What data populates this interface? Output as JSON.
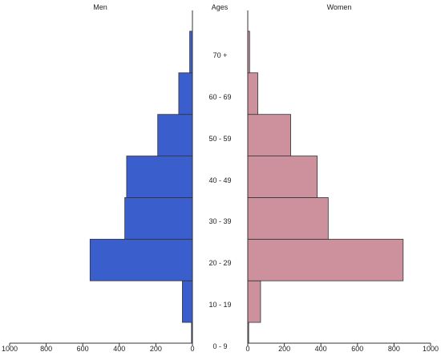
{
  "chart_data": {
    "type": "bar",
    "orientation": "horizontal-population-pyramid",
    "panel_titles": {
      "left": "Men",
      "center": "Ages",
      "right": "Women"
    },
    "categories": [
      "0 - 9",
      "10 - 19",
      "20 - 29",
      "30 - 39",
      "40 - 49",
      "50 - 59",
      "60 - 69",
      "70 +"
    ],
    "series": [
      {
        "name": "Men",
        "color": "#3a5fcd",
        "boundaries": [
          0,
          5,
          15,
          25,
          35,
          45,
          55,
          65,
          75,
          80
        ],
        "values": [
          5,
          55,
          560,
          370,
          360,
          190,
          75,
          15
        ]
      },
      {
        "name": "Women",
        "color": "#cd919e",
        "boundaries": [
          0,
          5,
          15,
          25,
          35,
          45,
          55,
          65,
          75,
          80
        ],
        "values": [
          5,
          70,
          850,
          440,
          380,
          235,
          55,
          10
        ]
      }
    ],
    "xlim": [
      0,
      1000
    ],
    "x_ticks": [
      0,
      200,
      400,
      600,
      800,
      1000
    ],
    "ylim": [
      0,
      80
    ],
    "grid": false,
    "legend": "none"
  }
}
